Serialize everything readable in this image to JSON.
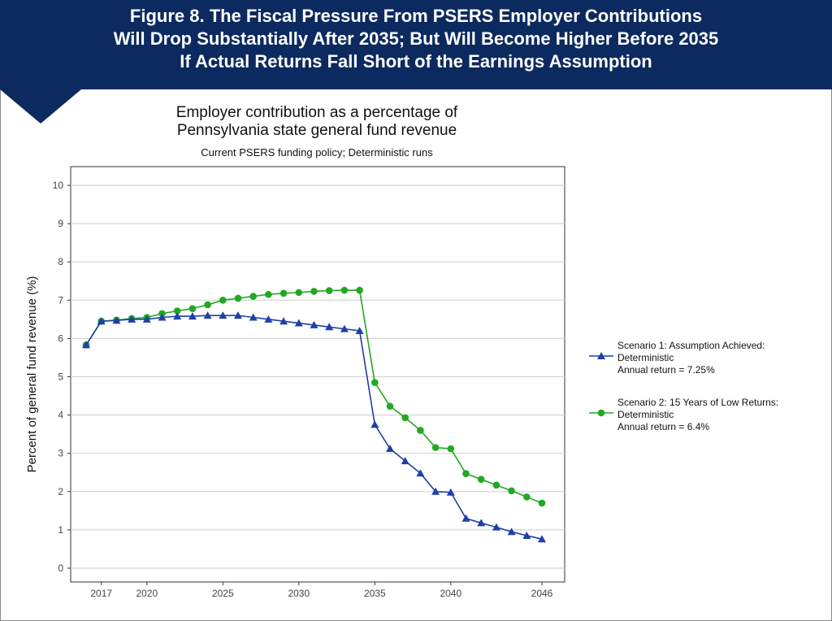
{
  "figure_title": [
    "Figure 8. The Fiscal Pressure From PSERS Employer Contributions",
    "Will Drop Substantially After 2035; But Will Become Higher Before 2035",
    "If Actual Returns Fall Short of the Earnings Assumption"
  ],
  "chart_data": {
    "type": "line",
    "title": [
      "Employer contribution as a percentage of",
      "Pennsylvania state general fund revenue"
    ],
    "subtitle": "Current PSERS funding policy; Deterministic runs",
    "xlabel": "",
    "ylabel": "Percent of general fund revenue (%)",
    "ylim": [
      0,
      10
    ],
    "xlim": [
      2016,
      2046
    ],
    "yticks": [
      0,
      1,
      2,
      3,
      4,
      5,
      6,
      7,
      8,
      9,
      10
    ],
    "xticks": [
      2017,
      2020,
      2025,
      2030,
      2035,
      2040,
      2046
    ],
    "grid": "horizontal",
    "legend_position": "right",
    "x": [
      2016,
      2017,
      2018,
      2019,
      2020,
      2021,
      2022,
      2023,
      2024,
      2025,
      2026,
      2027,
      2028,
      2029,
      2030,
      2031,
      2032,
      2033,
      2034,
      2035,
      2036,
      2037,
      2038,
      2039,
      2040,
      2041,
      2042,
      2043,
      2044,
      2045,
      2046
    ],
    "series": [
      {
        "name": [
          "Scenario 1: Assumption Achieved:",
          "Deterministic",
          "Annual return = 7.25%"
        ],
        "color": "#1f3fa8",
        "marker": "triangle",
        "values": [
          5.83,
          6.45,
          6.47,
          6.5,
          6.5,
          6.55,
          6.58,
          6.58,
          6.6,
          6.6,
          6.6,
          6.55,
          6.5,
          6.45,
          6.4,
          6.35,
          6.3,
          6.25,
          6.2,
          3.75,
          3.12,
          2.8,
          2.48,
          2.0,
          1.98,
          1.3,
          1.18,
          1.07,
          0.95,
          0.85,
          0.76
        ]
      },
      {
        "name": [
          "Scenario 2: 15 Years of Low Returns:",
          "Deterministic",
          "Annual return = 6.4%"
        ],
        "color": "#22a822",
        "marker": "circle",
        "values": [
          5.83,
          6.45,
          6.48,
          6.52,
          6.55,
          6.65,
          6.72,
          6.78,
          6.88,
          7.0,
          7.05,
          7.1,
          7.15,
          7.18,
          7.2,
          7.23,
          7.25,
          7.26,
          7.26,
          4.85,
          4.23,
          3.93,
          3.6,
          3.15,
          3.12,
          2.47,
          2.32,
          2.17,
          2.02,
          1.86,
          1.7
        ]
      }
    ]
  }
}
